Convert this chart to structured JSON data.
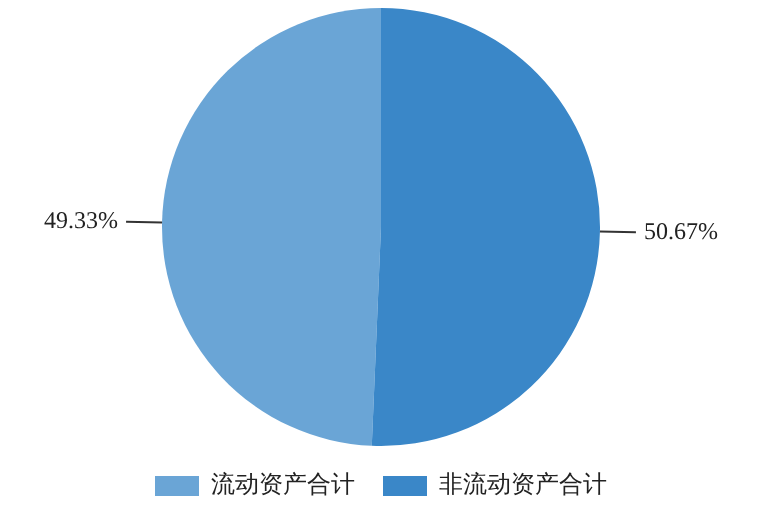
{
  "chart_data": {
    "type": "pie",
    "categories": [
      "流动资产合计",
      "非流动资产合计"
    ],
    "values": [
      49.33,
      50.67
    ],
    "colors": [
      "#6aa5d6",
      "#3a87c8"
    ],
    "value_labels": [
      "49.33%",
      "50.67%"
    ],
    "legend": "bottom"
  }
}
